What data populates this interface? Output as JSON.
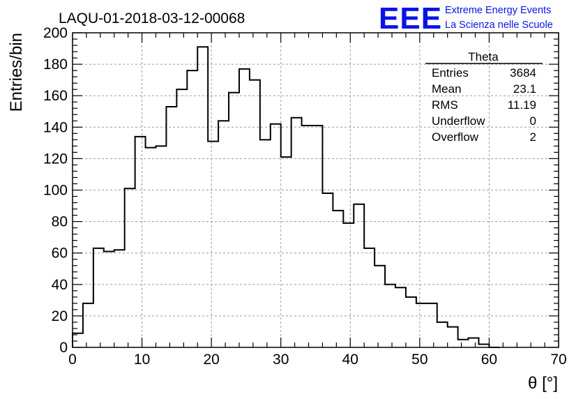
{
  "chart_data": {
    "type": "bar",
    "title": "LAQU-01-2018-03-12-00068",
    "xlabel": "θ [°]",
    "ylabel": "Entries/bin",
    "xlim": [
      0,
      70
    ],
    "ylim": [
      0,
      200
    ],
    "x_ticks": [
      "0",
      "10",
      "20",
      "30",
      "40",
      "50",
      "60",
      "70"
    ],
    "y_ticks": [
      "0",
      "20",
      "40",
      "60",
      "80",
      "100",
      "120",
      "140",
      "160",
      "180",
      "200"
    ],
    "grid": true,
    "bin_width": 1.5,
    "bin_start": 0,
    "values": [
      9,
      28,
      63,
      61,
      62,
      101,
      134,
      127,
      128,
      153,
      164,
      176,
      191,
      131,
      144,
      162,
      177,
      170,
      132,
      142,
      121,
      146,
      141,
      141,
      98,
      87,
      79,
      91,
      63,
      52,
      40,
      38,
      32,
      28,
      28,
      16,
      13,
      5,
      6,
      2,
      0
    ],
    "stats_box": {
      "title": "Theta",
      "rows": [
        {
          "label": "Entries",
          "value": "3684"
        },
        {
          "label": "Mean",
          "value": "23.1"
        },
        {
          "label": "RMS",
          "value": "11.19"
        },
        {
          "label": "Underflow",
          "value": "0"
        },
        {
          "label": "Overflow",
          "value": "2"
        }
      ]
    }
  },
  "logo": {
    "text": "EEE",
    "line1": "Extreme Energy Events",
    "line2": "La Scienza nelle Scuole",
    "color": "#0a14e6"
  }
}
